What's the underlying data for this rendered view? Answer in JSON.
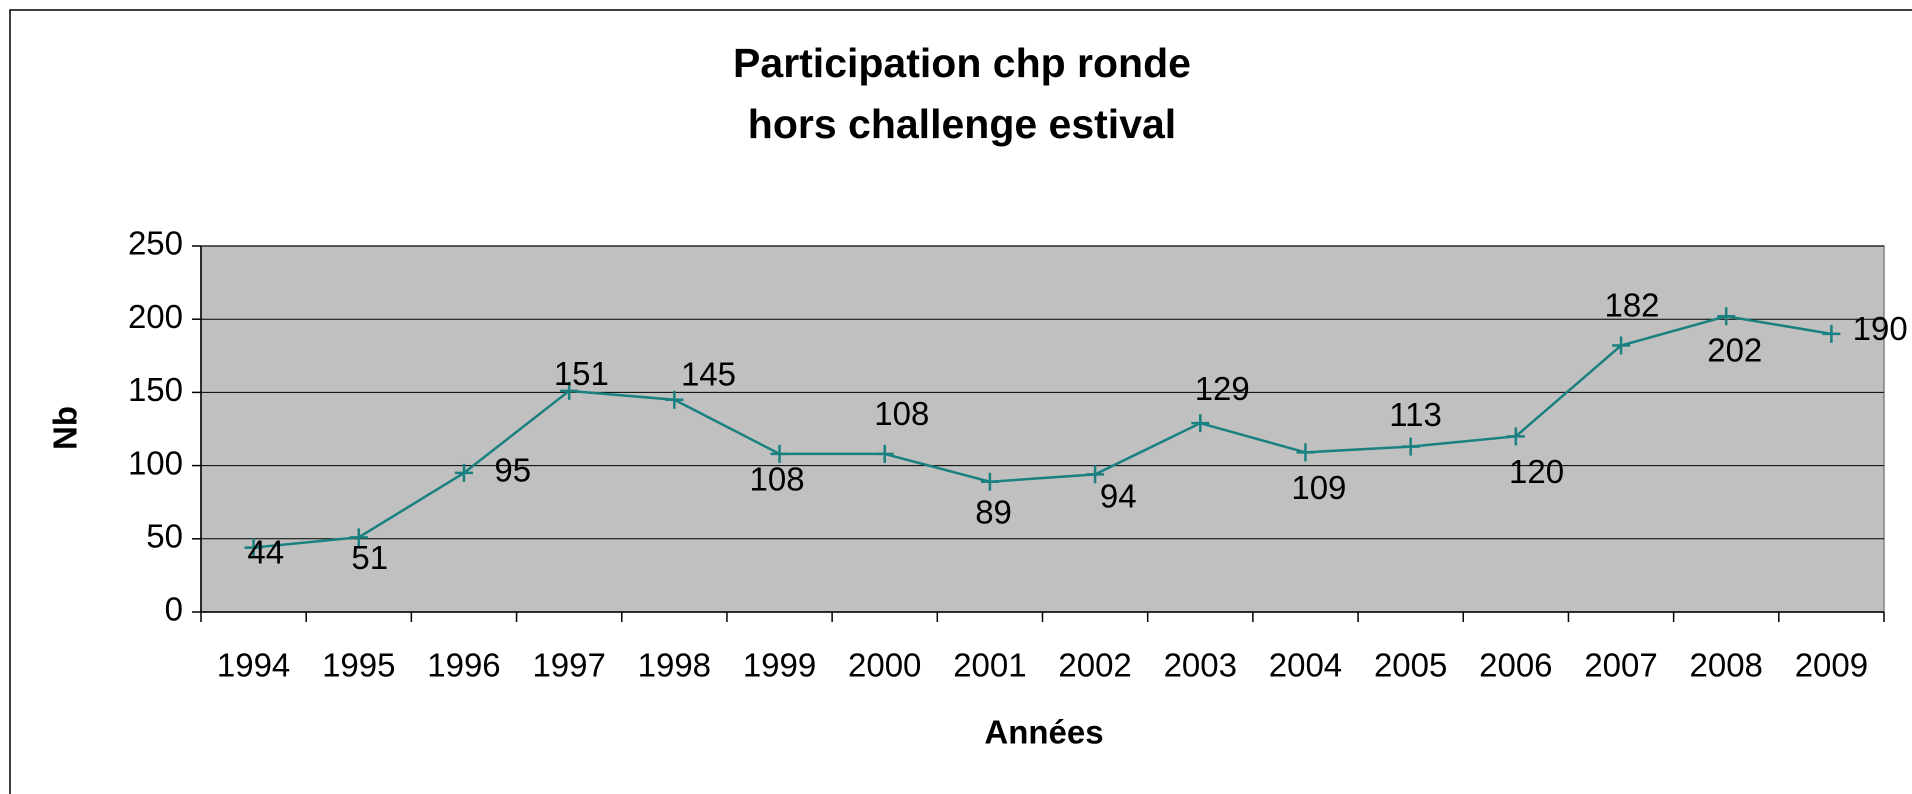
{
  "chart_data": {
    "type": "line",
    "title": [
      "Participation chp ronde",
      "hors challenge estival"
    ],
    "x_label": "Années",
    "y_label": "Nb",
    "categories": [
      "1994",
      "1995",
      "1996",
      "1997",
      "1998",
      "1999",
      "2000",
      "2001",
      "2002",
      "2003",
      "2004",
      "2005",
      "2006",
      "2007",
      "2008",
      "2009"
    ],
    "values": [
      44,
      51,
      95,
      151,
      145,
      108,
      108,
      89,
      94,
      129,
      109,
      113,
      120,
      182,
      202,
      190
    ],
    "color": "#1a8080",
    "ylim": [
      0,
      250
    ],
    "yticks": [
      0,
      50,
      100,
      150,
      200,
      250
    ],
    "grid": true
  }
}
